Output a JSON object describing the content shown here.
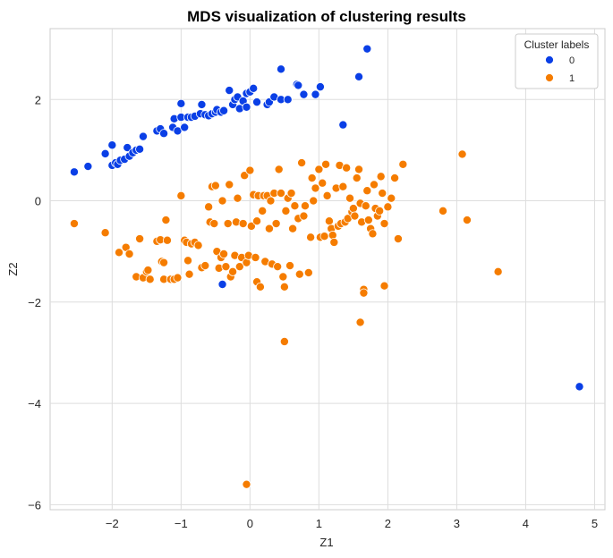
{
  "chart_data": {
    "type": "scatter",
    "title": "MDS visualization of clustering results",
    "xlabel": "Z1",
    "ylabel": "Z2",
    "xlim": [
      -2.9,
      5.15
    ],
    "ylim": [
      -6.1,
      3.4
    ],
    "xticks": [
      -2,
      -1,
      0,
      1,
      2,
      3,
      4,
      5
    ],
    "yticks": [
      -6,
      -4,
      -2,
      0,
      2
    ],
    "grid": true,
    "legend": {
      "title": "Cluster labels",
      "placement": "top-right"
    },
    "series": [
      {
        "name": "0",
        "color": "#0a3fe6",
        "points": [
          [
            -2.55,
            0.57
          ],
          [
            -2.35,
            0.68
          ],
          [
            -2.1,
            0.93
          ],
          [
            -2.0,
            1.1
          ],
          [
            -2.0,
            0.7
          ],
          [
            -1.95,
            0.75
          ],
          [
            -1.92,
            0.72
          ],
          [
            -1.88,
            0.8
          ],
          [
            -1.82,
            0.82
          ],
          [
            -1.78,
            1.05
          ],
          [
            -1.75,
            0.88
          ],
          [
            -1.7,
            0.95
          ],
          [
            -1.65,
            1.0
          ],
          [
            -1.6,
            1.02
          ],
          [
            -1.55,
            1.27
          ],
          [
            -1.35,
            1.38
          ],
          [
            -1.3,
            1.42
          ],
          [
            -1.25,
            1.33
          ],
          [
            -1.12,
            1.45
          ],
          [
            -1.1,
            1.62
          ],
          [
            -1.05,
            1.38
          ],
          [
            -1.0,
            1.92
          ],
          [
            -1.0,
            1.65
          ],
          [
            -0.95,
            1.45
          ],
          [
            -0.9,
            1.65
          ],
          [
            -0.85,
            1.65
          ],
          [
            -0.8,
            1.67
          ],
          [
            -0.72,
            1.72
          ],
          [
            -0.7,
            1.9
          ],
          [
            -0.65,
            1.7
          ],
          [
            -0.6,
            1.68
          ],
          [
            -0.55,
            1.72
          ],
          [
            -0.5,
            1.75
          ],
          [
            -0.48,
            1.8
          ],
          [
            -0.42,
            1.75
          ],
          [
            -0.38,
            1.78
          ],
          [
            -0.3,
            2.18
          ],
          [
            -0.25,
            1.9
          ],
          [
            -0.22,
            2.0
          ],
          [
            -0.18,
            2.05
          ],
          [
            -0.15,
            1.82
          ],
          [
            -0.1,
            1.97
          ],
          [
            -0.05,
            2.12
          ],
          [
            -0.05,
            1.85
          ],
          [
            0.0,
            2.15
          ],
          [
            0.05,
            2.22
          ],
          [
            0.1,
            1.95
          ],
          [
            0.25,
            1.9
          ],
          [
            0.28,
            1.95
          ],
          [
            0.35,
            2.05
          ],
          [
            0.45,
            2.6
          ],
          [
            0.45,
            2.0
          ],
          [
            0.55,
            2.0
          ],
          [
            0.68,
            2.3
          ],
          [
            0.7,
            2.28
          ],
          [
            0.78,
            2.1
          ],
          [
            0.95,
            2.1
          ],
          [
            1.02,
            2.25
          ],
          [
            1.35,
            1.5
          ],
          [
            1.58,
            2.45
          ],
          [
            1.7,
            3.0
          ],
          [
            -0.4,
            -1.65
          ],
          [
            4.78,
            -3.67
          ]
        ]
      },
      {
        "name": "1",
        "color": "#f57c00",
        "points": [
          [
            -2.55,
            -0.45
          ],
          [
            -2.1,
            -0.63
          ],
          [
            -1.9,
            -1.02
          ],
          [
            -1.8,
            -0.92
          ],
          [
            -1.75,
            -1.05
          ],
          [
            -1.6,
            -0.75
          ],
          [
            -1.65,
            -1.5
          ],
          [
            -1.55,
            -1.52
          ],
          [
            -1.5,
            -1.4
          ],
          [
            -1.48,
            -1.37
          ],
          [
            -1.45,
            -1.55
          ],
          [
            -1.35,
            -0.8
          ],
          [
            -1.3,
            -0.77
          ],
          [
            -1.28,
            -1.2
          ],
          [
            -1.25,
            -1.22
          ],
          [
            -1.25,
            -1.55
          ],
          [
            -1.22,
            -0.38
          ],
          [
            -1.2,
            -0.78
          ],
          [
            -1.15,
            -1.55
          ],
          [
            -1.1,
            -1.55
          ],
          [
            -1.05,
            -1.52
          ],
          [
            -1.0,
            0.1
          ],
          [
            -0.95,
            -0.78
          ],
          [
            -0.92,
            -0.82
          ],
          [
            -0.9,
            -1.18
          ],
          [
            -0.88,
            -1.45
          ],
          [
            -0.85,
            -0.85
          ],
          [
            -0.8,
            -0.82
          ],
          [
            -0.75,
            -0.88
          ],
          [
            -0.7,
            -1.32
          ],
          [
            -0.65,
            -1.28
          ],
          [
            -0.6,
            -0.12
          ],
          [
            -0.58,
            -0.42
          ],
          [
            -0.55,
            0.28
          ],
          [
            -0.52,
            -0.45
          ],
          [
            -0.5,
            0.3
          ],
          [
            -0.48,
            -1.0
          ],
          [
            -0.45,
            -1.33
          ],
          [
            -0.42,
            -1.12
          ],
          [
            -0.4,
            0.0
          ],
          [
            -0.38,
            -1.05
          ],
          [
            -0.35,
            -1.3
          ],
          [
            -0.32,
            -0.45
          ],
          [
            -0.3,
            0.32
          ],
          [
            -0.28,
            -1.5
          ],
          [
            -0.25,
            -1.4
          ],
          [
            -0.22,
            -1.08
          ],
          [
            -0.2,
            -0.42
          ],
          [
            -0.18,
            0.05
          ],
          [
            -0.15,
            -1.3
          ],
          [
            -0.12,
            -1.12
          ],
          [
            -0.1,
            -0.45
          ],
          [
            -0.08,
            0.5
          ],
          [
            -0.05,
            -1.22
          ],
          [
            -0.02,
            -1.08
          ],
          [
            0.0,
            0.6
          ],
          [
            0.02,
            -0.5
          ],
          [
            0.05,
            0.12
          ],
          [
            0.08,
            -1.12
          ],
          [
            0.1,
            -1.6
          ],
          [
            0.1,
            -0.4
          ],
          [
            0.12,
            0.1
          ],
          [
            0.15,
            -1.7
          ],
          [
            0.18,
            -0.2
          ],
          [
            0.2,
            0.1
          ],
          [
            0.22,
            -1.2
          ],
          [
            0.25,
            0.1
          ],
          [
            0.28,
            -0.55
          ],
          [
            0.3,
            0.0
          ],
          [
            0.32,
            -1.25
          ],
          [
            0.35,
            0.15
          ],
          [
            0.38,
            -0.45
          ],
          [
            0.4,
            -1.3
          ],
          [
            0.42,
            0.62
          ],
          [
            0.45,
            0.15
          ],
          [
            0.48,
            -1.5
          ],
          [
            0.5,
            -1.7
          ],
          [
            0.5,
            -2.78
          ],
          [
            0.52,
            -0.2
          ],
          [
            0.55,
            0.05
          ],
          [
            0.58,
            -1.28
          ],
          [
            0.6,
            0.15
          ],
          [
            0.62,
            -0.55
          ],
          [
            0.65,
            -0.1
          ],
          [
            0.7,
            -0.35
          ],
          [
            0.72,
            -1.45
          ],
          [
            0.75,
            0.75
          ],
          [
            0.78,
            -0.3
          ],
          [
            0.8,
            -0.1
          ],
          [
            0.85,
            -1.42
          ],
          [
            0.88,
            -0.72
          ],
          [
            0.9,
            0.45
          ],
          [
            0.92,
            0.0
          ],
          [
            0.95,
            0.25
          ],
          [
            1.0,
            0.62
          ],
          [
            1.02,
            -0.72
          ],
          [
            1.05,
            0.35
          ],
          [
            1.08,
            -0.7
          ],
          [
            1.1,
            0.72
          ],
          [
            1.12,
            0.1
          ],
          [
            1.15,
            -0.4
          ],
          [
            1.18,
            -0.55
          ],
          [
            1.2,
            -0.68
          ],
          [
            1.22,
            -0.82
          ],
          [
            1.25,
            0.25
          ],
          [
            1.28,
            -0.5
          ],
          [
            1.3,
            0.7
          ],
          [
            1.32,
            -0.45
          ],
          [
            1.35,
            0.28
          ],
          [
            1.38,
            -0.42
          ],
          [
            1.4,
            0.65
          ],
          [
            1.42,
            -0.35
          ],
          [
            1.45,
            0.05
          ],
          [
            1.48,
            -0.22
          ],
          [
            1.5,
            -0.15
          ],
          [
            1.52,
            -0.3
          ],
          [
            1.55,
            0.45
          ],
          [
            1.58,
            0.62
          ],
          [
            1.6,
            -0.05
          ],
          [
            1.62,
            -0.42
          ],
          [
            1.65,
            -1.75
          ],
          [
            1.65,
            -1.82
          ],
          [
            1.6,
            -2.4
          ],
          [
            1.68,
            -0.1
          ],
          [
            1.7,
            0.2
          ],
          [
            1.72,
            -0.38
          ],
          [
            1.75,
            -0.55
          ],
          [
            1.78,
            -0.65
          ],
          [
            1.8,
            0.32
          ],
          [
            1.82,
            -0.15
          ],
          [
            1.85,
            -0.3
          ],
          [
            1.88,
            -0.2
          ],
          [
            1.9,
            0.48
          ],
          [
            1.92,
            0.15
          ],
          [
            1.95,
            -0.45
          ],
          [
            1.95,
            -1.68
          ],
          [
            2.0,
            -0.12
          ],
          [
            2.05,
            0.05
          ],
          [
            2.1,
            0.45
          ],
          [
            2.15,
            -0.75
          ],
          [
            2.22,
            0.72
          ],
          [
            2.8,
            -0.2
          ],
          [
            3.08,
            0.92
          ],
          [
            3.15,
            -0.38
          ],
          [
            3.6,
            -1.4
          ],
          [
            -0.05,
            -5.6
          ]
        ]
      }
    ]
  }
}
